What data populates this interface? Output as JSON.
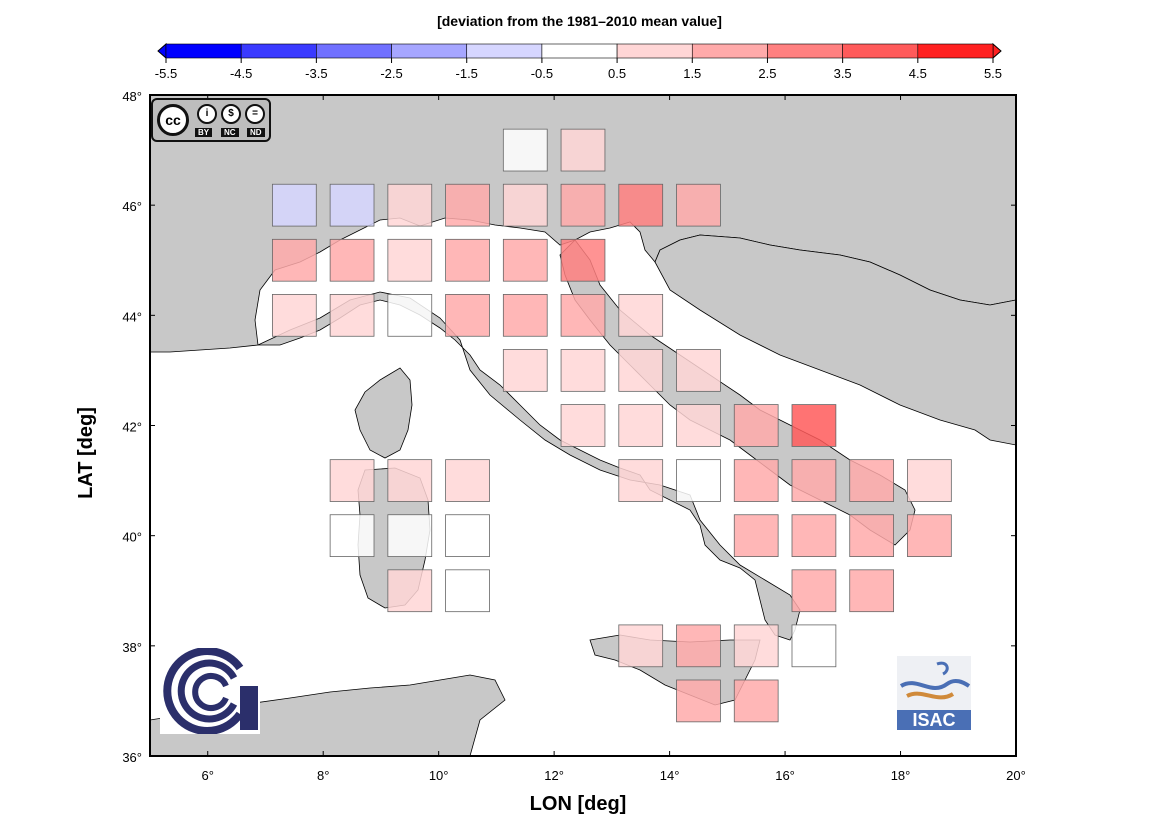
{
  "colorbar": {
    "title": "[deviation from the 1981–2010 mean value]",
    "ticks": [
      "-5.5",
      "-4.5",
      "-3.5",
      "-2.5",
      "-1.5",
      "-0.5",
      "0.5",
      "1.5",
      "2.5",
      "3.5",
      "4.5",
      "5.5"
    ],
    "colors": [
      "#0000ff",
      "#3a3aff",
      "#7070ff",
      "#a6a6ff",
      "#d6d6ff",
      "#ffffff",
      "#ffd6d6",
      "#ffaaaa",
      "#ff8080",
      "#ff5a5a",
      "#ff2020"
    ]
  },
  "axes": {
    "xlabel": "LON [deg]",
    "ylabel": "LAT [deg]",
    "xlim": [
      5,
      20
    ],
    "ylim": [
      36,
      48
    ],
    "xticks": [
      "6°",
      "8°",
      "10°",
      "12°",
      "14°",
      "16°",
      "18°",
      "20°"
    ],
    "yticks": [
      "36°",
      "38°",
      "40°",
      "42°",
      "44°",
      "46°",
      "48°"
    ]
  },
  "map": {
    "land_color": "#c8c8c8",
    "sea_color": "#ffffff",
    "cell_size_deg": 1.0,
    "cells": [
      {
        "lon": 11.5,
        "lat": 47,
        "v": 0.0
      },
      {
        "lon": 12.5,
        "lat": 47,
        "v": 0.8
      },
      {
        "lon": 7.5,
        "lat": 46,
        "v": -0.8
      },
      {
        "lon": 8.5,
        "lat": 46,
        "v": -0.8
      },
      {
        "lon": 9.5,
        "lat": 46,
        "v": 0.8
      },
      {
        "lon": 10.5,
        "lat": 46,
        "v": 1.6
      },
      {
        "lon": 11.5,
        "lat": 46,
        "v": 0.8
      },
      {
        "lon": 12.5,
        "lat": 46,
        "v": 1.6
      },
      {
        "lon": 13.5,
        "lat": 46,
        "v": 2.8
      },
      {
        "lon": 14.5,
        "lat": 46,
        "v": 1.6
      },
      {
        "lon": 7.5,
        "lat": 45,
        "v": 1.8
      },
      {
        "lon": 8.5,
        "lat": 45,
        "v": 1.6
      },
      {
        "lon": 9.5,
        "lat": 45,
        "v": 0.8
      },
      {
        "lon": 10.5,
        "lat": 45,
        "v": 1.6
      },
      {
        "lon": 11.5,
        "lat": 45,
        "v": 1.6
      },
      {
        "lon": 12.5,
        "lat": 45,
        "v": 2.8
      },
      {
        "lon": 7.5,
        "lat": 44,
        "v": 0.8
      },
      {
        "lon": 8.5,
        "lat": 44,
        "v": 0.8
      },
      {
        "lon": 9.5,
        "lat": 44,
        "v": 0.0
      },
      {
        "lon": 10.5,
        "lat": 44,
        "v": 1.8
      },
      {
        "lon": 11.5,
        "lat": 44,
        "v": 1.6
      },
      {
        "lon": 12.5,
        "lat": 44,
        "v": 1.6
      },
      {
        "lon": 13.5,
        "lat": 44,
        "v": 0.8
      },
      {
        "lon": 11.5,
        "lat": 43,
        "v": 0.8
      },
      {
        "lon": 12.5,
        "lat": 43,
        "v": 0.8
      },
      {
        "lon": 13.5,
        "lat": 43,
        "v": 0.8
      },
      {
        "lon": 14.5,
        "lat": 43,
        "v": 0.8
      },
      {
        "lon": 12.5,
        "lat": 42,
        "v": 0.8
      },
      {
        "lon": 13.5,
        "lat": 42,
        "v": 0.8
      },
      {
        "lon": 14.5,
        "lat": 42,
        "v": 0.8
      },
      {
        "lon": 15.5,
        "lat": 42,
        "v": 1.8
      },
      {
        "lon": 16.5,
        "lat": 42,
        "v": 4.0
      },
      {
        "lon": 8.5,
        "lat": 41,
        "v": 0.8
      },
      {
        "lon": 9.5,
        "lat": 41,
        "v": 0.8
      },
      {
        "lon": 10.5,
        "lat": 41,
        "v": 0.8
      },
      {
        "lon": 13.5,
        "lat": 41,
        "v": 0.8
      },
      {
        "lon": 14.5,
        "lat": 41,
        "v": 0.0
      },
      {
        "lon": 15.5,
        "lat": 41,
        "v": 1.6
      },
      {
        "lon": 16.5,
        "lat": 41,
        "v": 1.6
      },
      {
        "lon": 17.5,
        "lat": 41,
        "v": 1.8
      },
      {
        "lon": 18.5,
        "lat": 41,
        "v": 0.8
      },
      {
        "lon": 8.5,
        "lat": 40,
        "v": 0.0
      },
      {
        "lon": 9.5,
        "lat": 40,
        "v": 0.0
      },
      {
        "lon": 10.5,
        "lat": 40,
        "v": 0.0
      },
      {
        "lon": 15.5,
        "lat": 40,
        "v": 1.8
      },
      {
        "lon": 16.5,
        "lat": 40,
        "v": 1.6
      },
      {
        "lon": 17.5,
        "lat": 40,
        "v": 1.6
      },
      {
        "lon": 18.5,
        "lat": 40,
        "v": 1.8
      },
      {
        "lon": 9.5,
        "lat": 39,
        "v": 0.8
      },
      {
        "lon": 10.5,
        "lat": 39,
        "v": 0.0
      },
      {
        "lon": 16.5,
        "lat": 39,
        "v": 1.6
      },
      {
        "lon": 17.5,
        "lat": 39,
        "v": 1.6
      },
      {
        "lon": 13.5,
        "lat": 38,
        "v": 0.8
      },
      {
        "lon": 14.5,
        "lat": 38,
        "v": 1.8
      },
      {
        "lon": 15.5,
        "lat": 38,
        "v": 0.8
      },
      {
        "lon": 16.5,
        "lat": 38,
        "v": 0.0
      },
      {
        "lon": 14.5,
        "lat": 37,
        "v": 1.8
      },
      {
        "lon": 15.5,
        "lat": 37,
        "v": 1.8
      }
    ]
  },
  "logos": {
    "license_badge": "cc-by-nc-nd-icon",
    "cc_text": "cc",
    "by_text": "BY",
    "nc_text": "NC",
    "nd_text": "ND",
    "cnr": "cnr-logo-icon",
    "isac": "ISAC"
  }
}
